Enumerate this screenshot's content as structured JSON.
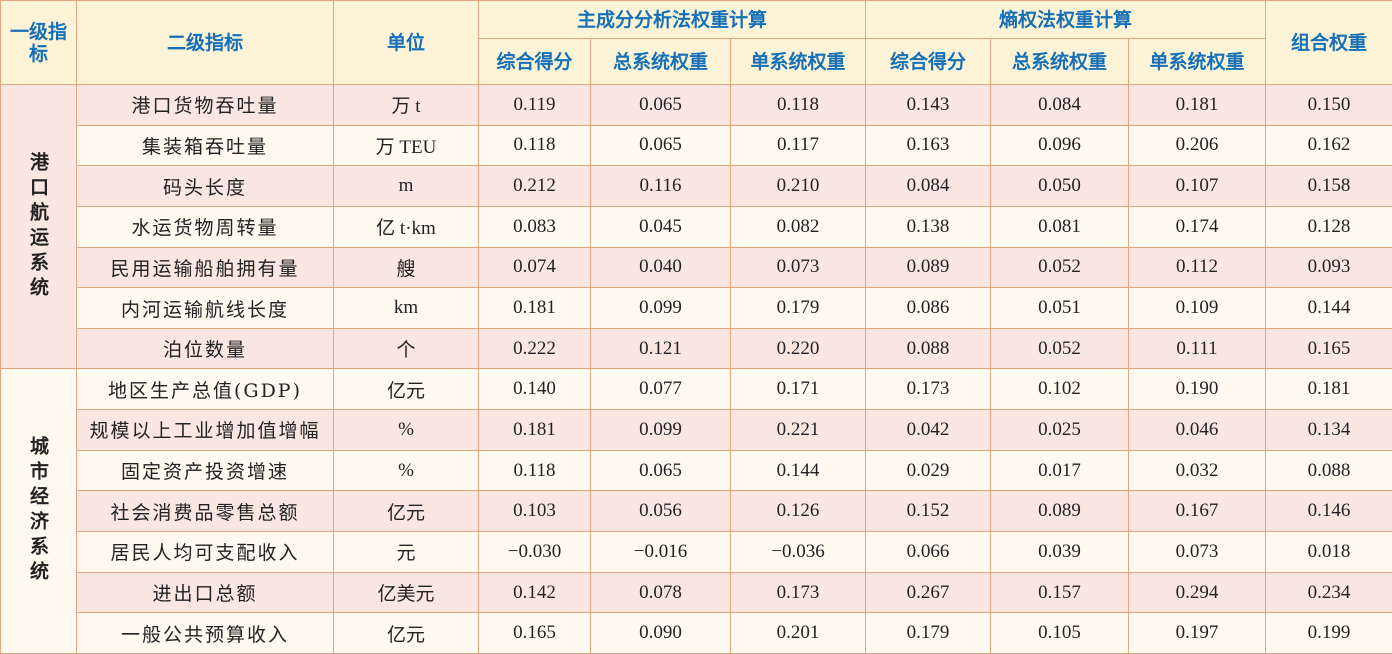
{
  "header": {
    "level1": "一级指标",
    "level2": "二级指标",
    "unit": "单位",
    "pca": "主成分分析法权重计算",
    "entropy": "熵权法权重计算",
    "combined": "组合权重",
    "sub": [
      "综合得分",
      "总系统权重",
      "单系统权重",
      "综合得分",
      "总系统权重",
      "单系统权重"
    ]
  },
  "groups": [
    {
      "name": "港口航运系统",
      "rows": [
        [
          "港口货物吞吐量",
          "万 t",
          "0.119",
          "0.065",
          "0.118",
          "0.143",
          "0.084",
          "0.181",
          "0.150"
        ],
        [
          "集装箱吞吐量",
          "万 TEU",
          "0.118",
          "0.065",
          "0.117",
          "0.163",
          "0.096",
          "0.206",
          "0.162"
        ],
        [
          "码头长度",
          "m",
          "0.212",
          "0.116",
          "0.210",
          "0.084",
          "0.050",
          "0.107",
          "0.158"
        ],
        [
          "水运货物周转量",
          "亿 t·km",
          "0.083",
          "0.045",
          "0.082",
          "0.138",
          "0.081",
          "0.174",
          "0.128"
        ],
        [
          "民用运输船舶拥有量",
          "艘",
          "0.074",
          "0.040",
          "0.073",
          "0.089",
          "0.052",
          "0.112",
          "0.093"
        ],
        [
          "内河运输航线长度",
          "km",
          "0.181",
          "0.099",
          "0.179",
          "0.086",
          "0.051",
          "0.109",
          "0.144"
        ],
        [
          "泊位数量",
          "个",
          "0.222",
          "0.121",
          "0.220",
          "0.088",
          "0.052",
          "0.111",
          "0.165"
        ]
      ]
    },
    {
      "name": "城市经济系统",
      "rows": [
        [
          "地区生产总值(GDP)",
          "亿元",
          "0.140",
          "0.077",
          "0.171",
          "0.173",
          "0.102",
          "0.190",
          "0.181"
        ],
        [
          "规模以上工业增加值增幅",
          "%",
          "0.181",
          "0.099",
          "0.221",
          "0.042",
          "0.025",
          "0.046",
          "0.134"
        ],
        [
          "固定资产投资增速",
          "%",
          "0.118",
          "0.065",
          "0.144",
          "0.029",
          "0.017",
          "0.032",
          "0.088"
        ],
        [
          "社会消费品零售总额",
          "亿元",
          "0.103",
          "0.056",
          "0.126",
          "0.152",
          "0.089",
          "0.167",
          "0.146"
        ],
        [
          "居民人均可支配收入",
          "元",
          "−0.030",
          "−0.016",
          "−0.036",
          "0.066",
          "0.039",
          "0.073",
          "0.018"
        ],
        [
          "进出口总额",
          "亿美元",
          "0.142",
          "0.078",
          "0.173",
          "0.267",
          "0.157",
          "0.294",
          "0.234"
        ],
        [
          "一般公共预算收入",
          "亿元",
          "0.165",
          "0.090",
          "0.201",
          "0.179",
          "0.105",
          "0.197",
          "0.199"
        ]
      ]
    }
  ]
}
